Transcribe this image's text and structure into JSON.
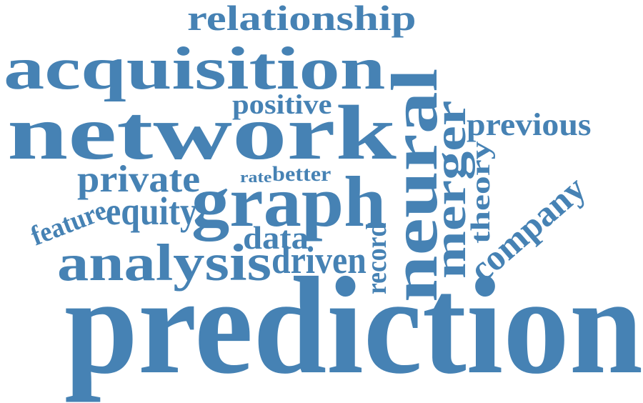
{
  "cloud": {
    "color": "#4682b4",
    "words": {
      "relationship": "relationship",
      "acquisition": "acquisition",
      "network": "network",
      "positive": "positive",
      "neural": "neural",
      "merger": "merger",
      "previous": "previous",
      "theory": "theory",
      "private": "private",
      "rate": "rate",
      "better": "better",
      "graph": "graph",
      "company": "company",
      "feature": "feature",
      "equity": "equity",
      "data": "data",
      "analysis": "analysis",
      "driven": "driven",
      "record": "record",
      "prediction": "prediction"
    }
  }
}
